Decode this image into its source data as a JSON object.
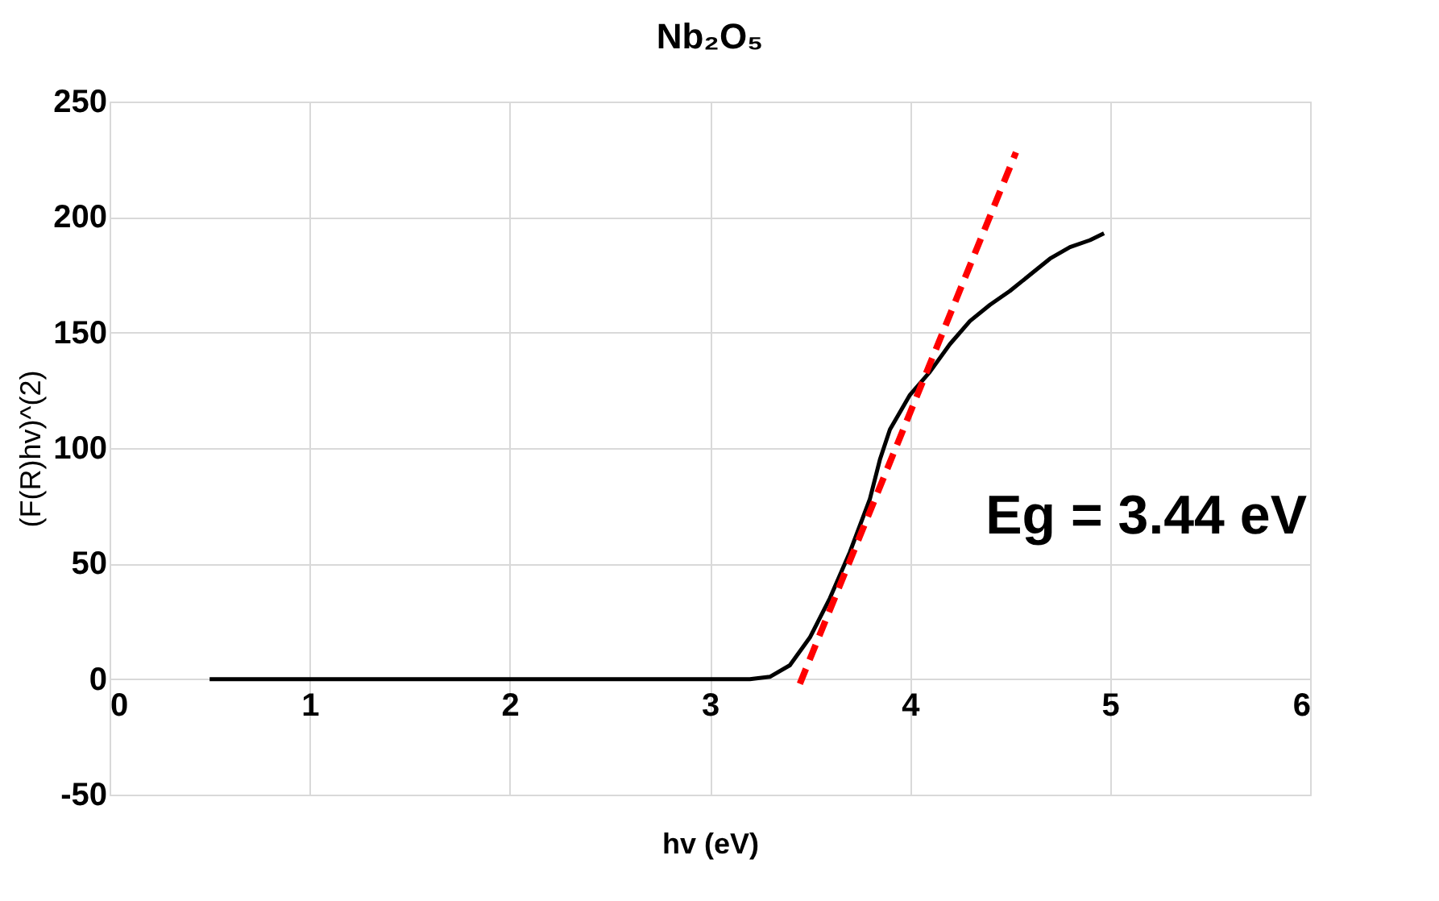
{
  "chart_data": {
    "type": "line",
    "title": "Nb₂O₅",
    "xlabel": "hv (eV)",
    "ylabel": "(F(R)hv)^(2)",
    "xlim": [
      0,
      6
    ],
    "xticks": [
      0,
      1,
      2,
      3,
      4,
      5,
      6
    ],
    "ylim": [
      -50,
      250
    ],
    "yticks": [
      -50,
      0,
      50,
      100,
      150,
      200,
      250
    ],
    "grid": true,
    "annotations": [
      "Eg = 3.44 eV"
    ],
    "series": [
      {
        "color": "#000000",
        "line_style": "solid",
        "x": [
          0.5,
          1.0,
          2.0,
          3.0,
          3.2,
          3.3,
          3.4,
          3.5,
          3.6,
          3.7,
          3.8,
          3.85,
          3.9,
          4.0,
          4.1,
          4.2,
          4.3,
          4.4,
          4.5,
          4.6,
          4.7,
          4.8,
          4.9,
          4.97
        ],
        "values": [
          0,
          0,
          0,
          0,
          0,
          1,
          6,
          18,
          35,
          55,
          78,
          95,
          108,
          123,
          133,
          145,
          155,
          162,
          168,
          175,
          182,
          187,
          190,
          193
        ]
      },
      {
        "color": "#ff0000",
        "line_style": "dashed",
        "x": [
          3.45,
          4.53
        ],
        "values": [
          -2,
          228
        ]
      }
    ]
  }
}
